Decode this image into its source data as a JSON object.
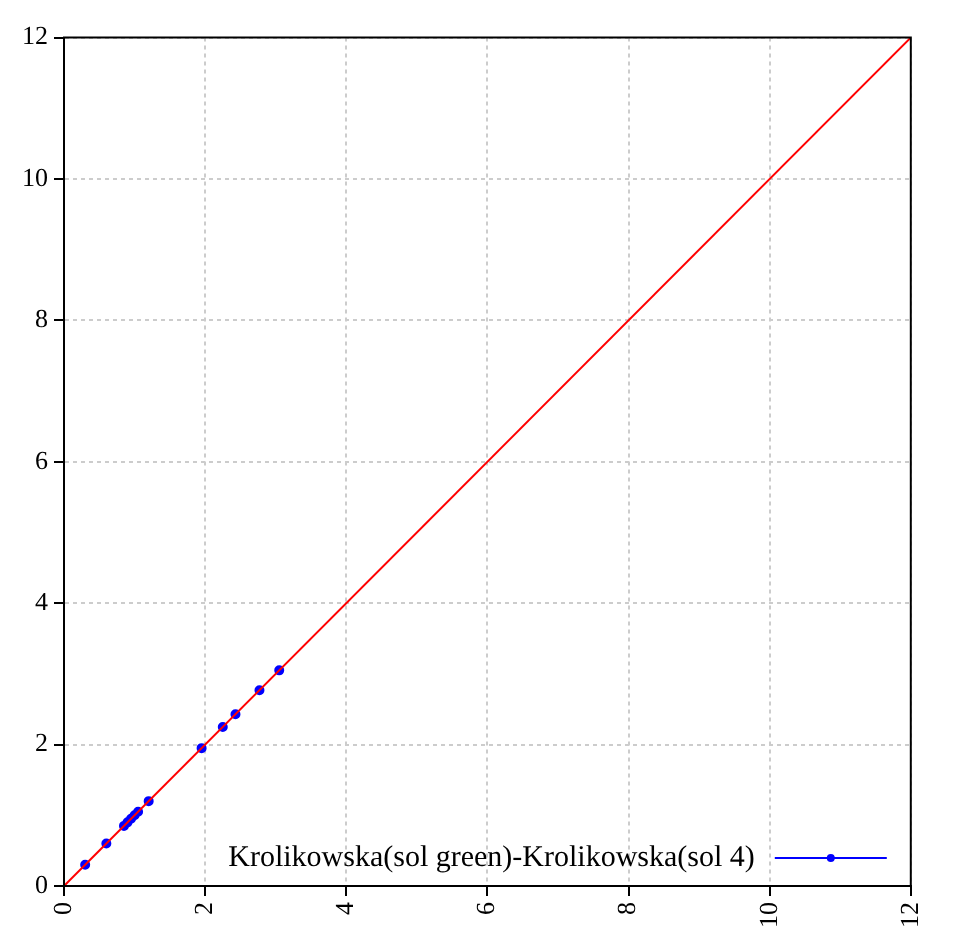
{
  "chart_data": {
    "type": "scatter",
    "xlim": [
      0,
      12
    ],
    "ylim": [
      0,
      12
    ],
    "xticks": [
      0,
      2,
      4,
      6,
      8,
      10,
      12
    ],
    "yticks": [
      0,
      2,
      4,
      6,
      8,
      10,
      12
    ],
    "grid": true,
    "legend": "bottom right",
    "marker": "circle",
    "series": [
      {
        "type": "line",
        "color": "#ff0000",
        "x": [
          0,
          12
        ],
        "values": [
          0,
          12
        ],
        "marker": "none"
      },
      {
        "name": "Krolikowska(sol green)-Krolikowska(sol 4)",
        "color": "#0000ff",
        "x": [
          0.3,
          0.6,
          0.85,
          0.9,
          0.95,
          1.0,
          1.05,
          1.2,
          1.95,
          2.25,
          2.43,
          2.77,
          3.05
        ],
        "values": [
          0.3,
          0.6,
          0.85,
          0.9,
          0.95,
          1.0,
          1.05,
          1.2,
          1.95,
          2.25,
          2.43,
          2.77,
          3.05
        ]
      }
    ]
  }
}
